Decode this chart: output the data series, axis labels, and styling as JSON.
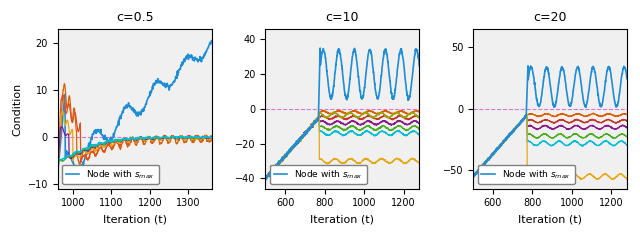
{
  "fig_width": 6.4,
  "fig_height": 2.42,
  "dpi": 100,
  "subplots": [
    {
      "title": "c=0.5",
      "xlabel": "Iteration (t)",
      "ylabel": "Condition",
      "xlim": [
        960,
        1360
      ],
      "ylim": [
        -11,
        23
      ],
      "xticks": [
        1000,
        1100,
        1200,
        1300
      ],
      "yticks": [
        -10,
        0,
        10,
        20
      ],
      "x_start": 960,
      "x_end": 1360,
      "n_points": 400,
      "c_val": 0.5,
      "legend_label": "Node with s",
      "legend_sub": "max",
      "dashed_y": 0
    },
    {
      "title": "c=10",
      "xlabel": "Iteration (t)",
      "ylabel": "",
      "xlim": [
        500,
        1280
      ],
      "ylim": [
        -46,
        46
      ],
      "xticks": [
        600,
        800,
        1000,
        1200
      ],
      "yticks": [
        -40,
        -20,
        0,
        20,
        40
      ],
      "x_start": 500,
      "x_end": 1280,
      "n_points": 780,
      "c_val": 10,
      "legend_label": "Node with s",
      "legend_sub": "max",
      "dashed_y": 0
    },
    {
      "title": "c=20",
      "xlabel": "Iteration (t)",
      "ylabel": "",
      "xlim": [
        500,
        1280
      ],
      "ylim": [
        -65,
        65
      ],
      "xticks": [
        600,
        800,
        1000,
        1200
      ],
      "yticks": [
        -50,
        0,
        50
      ],
      "x_start": 500,
      "x_end": 1280,
      "n_points": 780,
      "c_val": 20,
      "legend_label": "Node with s",
      "legend_sub": "max",
      "dashed_y": 0
    }
  ],
  "colors": {
    "blue": "#1f77b4",
    "orange": "#d95f02",
    "red": "#c0392b",
    "gold": "#e6a817",
    "purple": "#7b2d8b",
    "green": "#4dac26",
    "cyan": "#00bcd4",
    "dark_red": "#a00000",
    "light_blue": "#74b9e7",
    "olive": "#808000",
    "magenta": "#cc44cc"
  },
  "bg_color": "#f0f0f0",
  "dashed_color": "#cc44cc"
}
